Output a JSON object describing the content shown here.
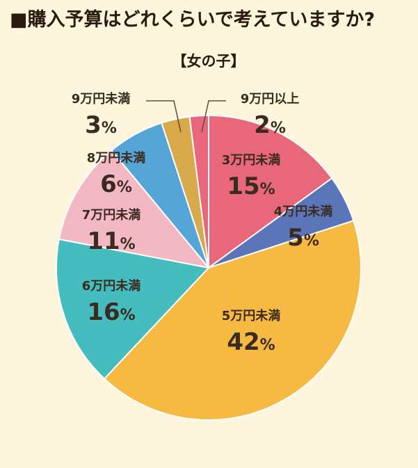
{
  "chart_data": {
    "type": "pie",
    "title": "■購入予算はどれくらいで考えていますか?",
    "subtitle": "【女の子】",
    "unit": "%",
    "start_angle_deg": 0,
    "direction": "clockwise",
    "slices": [
      {
        "label": "3万円未満",
        "value": 15,
        "color": "#e8677a"
      },
      {
        "label": "4万円未満",
        "value": 5,
        "color": "#5a76b8"
      },
      {
        "label": "5万円未満",
        "value": 42,
        "color": "#f6b941"
      },
      {
        "label": "6万円未満",
        "value": 16,
        "color": "#45bcbd"
      },
      {
        "label": "7万円未満",
        "value": 11,
        "color": "#f2b8c3"
      },
      {
        "label": "8万円未満",
        "value": 6,
        "color": "#55a6d7"
      },
      {
        "label": "9万円未満",
        "value": 3,
        "color": "#d8aa4c"
      },
      {
        "label": "9万円以上",
        "value": 2,
        "color": "#e8677a"
      }
    ]
  }
}
